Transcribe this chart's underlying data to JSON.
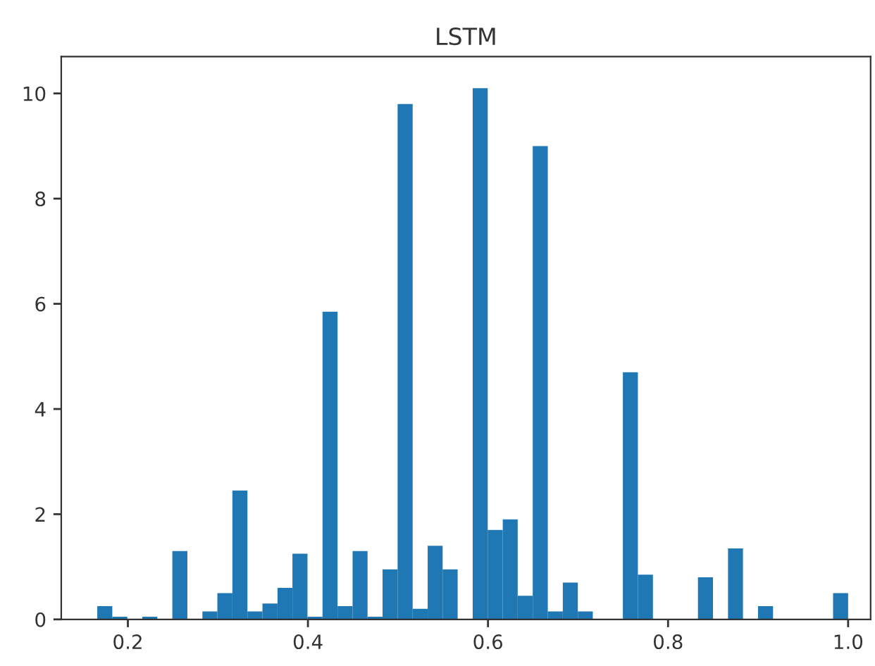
{
  "chart_data": {
    "type": "histogram",
    "title": "LSTM",
    "color": "#1f77b4",
    "bins": [
      0.166,
      0.1827,
      0.1994,
      0.216,
      0.2327,
      0.2494,
      0.2661,
      0.2828,
      0.2994,
      0.3161,
      0.3328,
      0.3495,
      0.3662,
      0.3828,
      0.3995,
      0.4162,
      0.4329,
      0.4496,
      0.4662,
      0.4829,
      0.4996,
      0.5163,
      0.533,
      0.5496,
      0.5663,
      0.583,
      0.5997,
      0.6164,
      0.633,
      0.6497,
      0.6664,
      0.6831,
      0.6998,
      0.7164,
      0.7331,
      0.7498,
      0.7665,
      0.7832,
      0.7998,
      0.8165,
      0.8332,
      0.8499,
      0.8666,
      0.8832,
      0.8999,
      0.9166,
      0.9333,
      0.95,
      0.9666,
      0.9833,
      1.0
    ],
    "values": [
      0.25,
      0.05,
      0,
      0.05,
      0,
      1.3,
      0,
      0.15,
      0.5,
      2.45,
      0.15,
      0.3,
      0.6,
      1.25,
      0.05,
      5.85,
      0.25,
      1.3,
      0.05,
      0.95,
      9.8,
      0.2,
      1.4,
      0.95,
      0,
      10.1,
      1.7,
      1.9,
      0.45,
      9.0,
      0.15,
      0.7,
      0.15,
      0,
      0,
      4.7,
      0.85,
      0,
      0,
      0,
      0.8,
      0,
      1.35,
      0,
      0.25,
      0,
      0,
      0,
      0,
      0.5
    ],
    "xlim": [
      0.126,
      1.025
    ],
    "ylim": [
      0,
      10.7
    ],
    "xticks": [
      {
        "value": 0.2,
        "label": "0.2"
      },
      {
        "value": 0.4,
        "label": "0.4"
      },
      {
        "value": 0.6,
        "label": "0.6"
      },
      {
        "value": 0.8,
        "label": "0.8"
      },
      {
        "value": 1.0,
        "label": "1.0"
      }
    ],
    "yticks": [
      0,
      2,
      4,
      6,
      8,
      10
    ],
    "grid": false,
    "legend": false
  }
}
